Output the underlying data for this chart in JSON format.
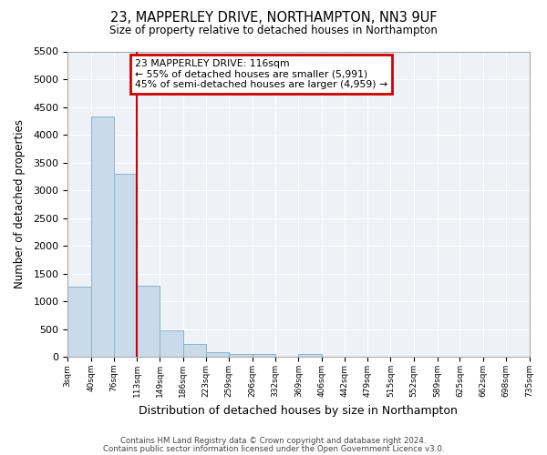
{
  "title": "23, MAPPERLEY DRIVE, NORTHAMPTON, NN3 9UF",
  "subtitle": "Size of property relative to detached houses in Northampton",
  "xlabel": "Distribution of detached houses by size in Northampton",
  "ylabel": "Number of detached properties",
  "bar_color": "#c9daea",
  "bar_edge_color": "#8ab4cc",
  "background_color": "#eef2f7",
  "grid_color": "#ffffff",
  "fig_background": "#ffffff",
  "bins": [
    3,
    40,
    76,
    113,
    149,
    186,
    223,
    259,
    296,
    332,
    369,
    406,
    442,
    479,
    515,
    552,
    589,
    625,
    662,
    698,
    735
  ],
  "counts": [
    1270,
    4330,
    3290,
    1280,
    480,
    230,
    80,
    50,
    50,
    0,
    50,
    0,
    0,
    0,
    0,
    0,
    0,
    0,
    0,
    0
  ],
  "vline_x": 113,
  "vline_color": "#cc0000",
  "annotation_title": "23 MAPPERLEY DRIVE: 116sqm",
  "annotation_line1": "← 55% of detached houses are smaller (5,991)",
  "annotation_line2": "45% of semi-detached houses are larger (4,959) →",
  "ylim": [
    0,
    5500
  ],
  "yticks": [
    0,
    500,
    1000,
    1500,
    2000,
    2500,
    3000,
    3500,
    4000,
    4500,
    5000,
    5500
  ],
  "footnote1": "Contains HM Land Registry data © Crown copyright and database right 2024.",
  "footnote2": "Contains public sector information licensed under the Open Government Licence v3.0."
}
